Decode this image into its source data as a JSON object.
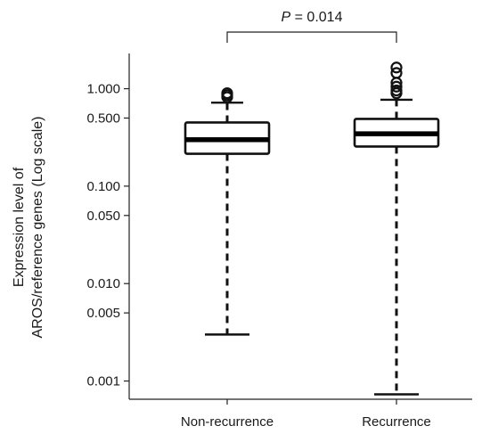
{
  "chart_data": {
    "type": "boxplot",
    "ylabel_lines": [
      "Expression level of",
      "AROS/reference genes (Log scale)"
    ],
    "y_scale": "log",
    "ylim": [
      0.00065,
      2.3
    ],
    "y_ticks": [
      {
        "value": 1.0,
        "label": "1.000"
      },
      {
        "value": 0.5,
        "label": "0.500"
      },
      {
        "value": 0.1,
        "label": "0.100"
      },
      {
        "value": 0.05,
        "label": "0.050"
      },
      {
        "value": 0.01,
        "label": "0.010"
      },
      {
        "value": 0.005,
        "label": "0.005"
      },
      {
        "value": 0.001,
        "label": "0.001"
      }
    ],
    "categories": [
      "Non-recurrence",
      "Recurrence"
    ],
    "boxes": [
      {
        "category": "Non-recurrence",
        "whisker_low": 0.003,
        "q1": 0.215,
        "median": 0.3,
        "q3": 0.45,
        "whisker_high": 0.72,
        "outliers": [
          0.82,
          0.86,
          0.9
        ]
      },
      {
        "category": "Recurrence",
        "whisker_low": 0.00073,
        "q1": 0.255,
        "median": 0.345,
        "q3": 0.49,
        "whisker_high": 0.77,
        "outliers": [
          0.9,
          0.96,
          1.05,
          1.15,
          1.45,
          1.65
        ]
      }
    ],
    "annotation": {
      "italic": "P",
      "rest": " = 0.014"
    }
  }
}
